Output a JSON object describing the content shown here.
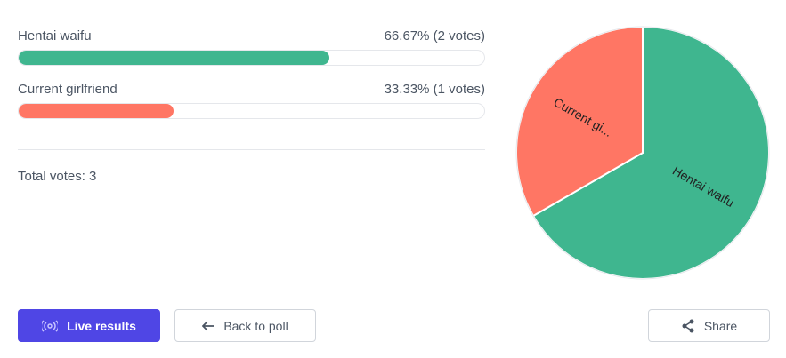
{
  "options": [
    {
      "label": "Hentai waifu",
      "result": "66.67% (2 votes)",
      "percent": 66.67,
      "votes": 2,
      "color": "#3fb68f",
      "pie_label": "Hentai waifu"
    },
    {
      "label": "Current girlfriend",
      "result": "33.33% (1 votes)",
      "percent": 33.33,
      "votes": 1,
      "color": "#ff7664",
      "pie_label": "Current gi..."
    }
  ],
  "total": "Total votes: 3",
  "buttons": {
    "live": "Live results",
    "back": "Back to poll",
    "share": "Share"
  }
}
